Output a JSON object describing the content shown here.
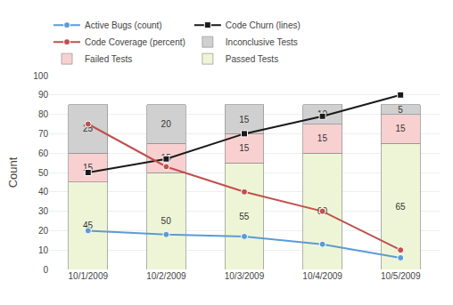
{
  "chart_data": {
    "type": "bar",
    "stacked": true,
    "data_labels": true,
    "grid": true,
    "legend": "top",
    "ylabel": "Count",
    "categories": [
      "10/1/2009",
      "10/2/2009",
      "10/3/2009",
      "10/4/2009",
      "10/5/2009"
    ],
    "ylim": [
      0,
      100
    ],
    "yticks": [
      0,
      10,
      20,
      30,
      40,
      50,
      60,
      70,
      80,
      90,
      100
    ],
    "series": [
      {
        "name": "Passed Tests",
        "type": "bar",
        "color": "#eef5d6",
        "values": [
          45,
          50,
          55,
          60,
          65
        ]
      },
      {
        "name": "Failed Tests",
        "type": "bar",
        "color": "#f9d0d0",
        "values": [
          15,
          15,
          15,
          15,
          15
        ]
      },
      {
        "name": "Inconclusive Tests",
        "type": "bar",
        "color": "#d0d0d0",
        "values": [
          25,
          20,
          15,
          10,
          5
        ]
      },
      {
        "name": "Active Bugs (count)",
        "type": "line",
        "color": "#5b9bd5",
        "marker": "circle",
        "values": [
          20,
          18,
          17,
          13,
          6
        ]
      },
      {
        "name": "Code Churn (lines)",
        "type": "line",
        "color": "#1a1a1a",
        "marker": "square",
        "values": [
          50,
          57,
          70,
          79,
          90
        ]
      },
      {
        "name": "Code Coverage (percent)",
        "type": "line",
        "color": "#c0504d",
        "marker": "circle",
        "values": [
          75,
          53,
          40,
          30,
          10
        ]
      }
    ]
  }
}
